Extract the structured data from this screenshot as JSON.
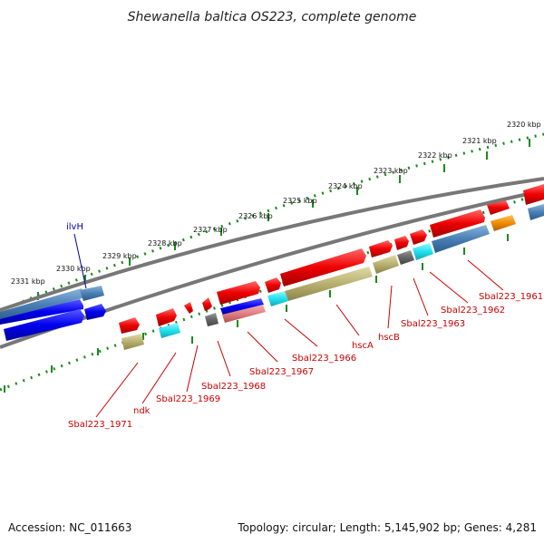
{
  "title": "Shewanella baltica OS223, complete genome",
  "footer": {
    "accession": "Accession: NC_011663",
    "summary": "Topology: circular; Length: 5,145,902 bp; Genes: 4,281"
  },
  "kbp_ticks": [
    "2320 kbp",
    "2321 kbp",
    "2322 kbp",
    "2323 kbp",
    "2324 kbp",
    "2325 kbp",
    "2326 kbp",
    "2327 kbp",
    "2328 kbp",
    "2329 kbp",
    "2330 kbp",
    "2331 kbp"
  ],
  "gene_labels": [
    "ilvH",
    "Sbal223_1961",
    "Sbal223_1962",
    "Sbal223_1963",
    "hscB",
    "hscA",
    "Sbal223_1966",
    "Sbal223_1967",
    "Sbal223_1968",
    "Sbal223_1969",
    "ndk",
    "Sbal223_1971"
  ],
  "colors": {
    "cds_red": "#ee0000",
    "cds_blue": "#0000ee",
    "steelblue": "#4a7fb5",
    "olive": "#b8b070",
    "cyan": "#22e0ee",
    "orange": "#f08c00",
    "gray": "#666666",
    "pink": "#e08080",
    "backbone": "#777777",
    "tick_green": "#1a8a1a",
    "label_red": "#cc0000",
    "label_blue": "#0000aa"
  }
}
